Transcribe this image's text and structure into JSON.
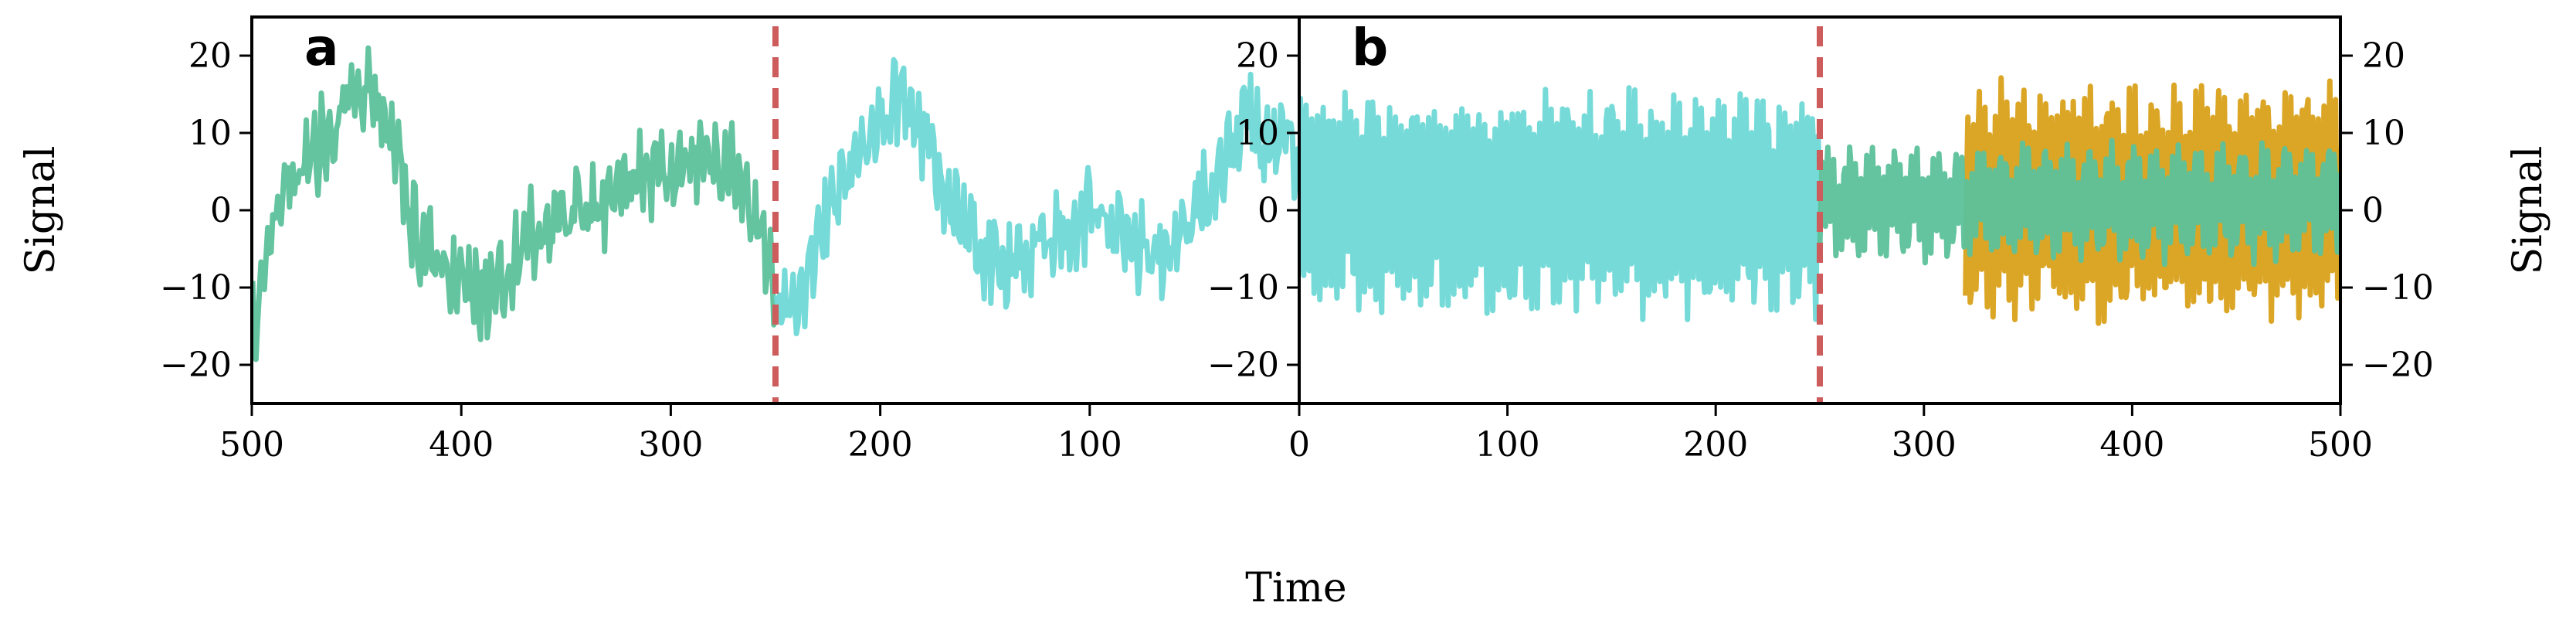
{
  "chart_data": {
    "type": "line",
    "xlabel": "Time",
    "ylabel": "Signal",
    "colors": {
      "green": "#5cc19a",
      "cyan": "#6fd9d6",
      "orange": "#d9a11a",
      "marker": "#cd5c5c"
    },
    "ylim": [
      -25,
      25
    ],
    "yticks": [
      -20,
      -10,
      0,
      10,
      20
    ],
    "panels": [
      {
        "label": "a",
        "xlim": [
          500,
          0
        ],
        "xticks": [
          500,
          400,
          300,
          200,
          100,
          0
        ],
        "vline_x": 250,
        "series": [
          {
            "color": "green",
            "x_range": [
              500,
              250
            ],
            "style": "walk",
            "values_at": [
              [
                500,
                -15
              ],
              [
                485,
                2
              ],
              [
                470,
                8
              ],
              [
                450,
                15
              ],
              [
                440,
                14
              ],
              [
                430,
                5
              ],
              [
                420,
                -5
              ],
              [
                400,
                -9
              ],
              [
                390,
                -12
              ],
              [
                380,
                -8
              ],
              [
                365,
                -3
              ],
              [
                350,
                -1
              ],
              [
                330,
                1
              ],
              [
                310,
                5
              ],
              [
                290,
                7
              ],
              [
                270,
                5
              ],
              [
                260,
                -1
              ],
              [
                250,
                -12
              ]
            ]
          },
          {
            "color": "cyan",
            "x_range": [
              250,
              0
            ],
            "style": "walk",
            "values_at": [
              [
                250,
                -12
              ],
              [
                240,
                -14
              ],
              [
                230,
                -5
              ],
              [
                215,
                5
              ],
              [
                200,
                12
              ],
              [
                190,
                14
              ],
              [
                180,
                10
              ],
              [
                165,
                0
              ],
              [
                150,
                -5
              ],
              [
                135,
                -7
              ],
              [
                120,
                -4
              ],
              [
                100,
                -1
              ],
              [
                85,
                -3
              ],
              [
                70,
                -6
              ],
              [
                55,
                -2
              ],
              [
                40,
                5
              ],
              [
                25,
                12
              ],
              [
                15,
                8
              ],
              [
                0,
                7
              ]
            ]
          }
        ]
      },
      {
        "label": "b",
        "xlim": [
          0,
          500
        ],
        "xticks": [
          0,
          100,
          200,
          300,
          400,
          500
        ],
        "vline_x": 250,
        "series": [
          {
            "color": "cyan",
            "x_range": [
              0,
              250
            ],
            "style": "oscillation",
            "amplitude": 13,
            "mean": 1
          },
          {
            "color": "orange",
            "x_range": [
              320,
              500
            ],
            "style": "oscillation",
            "amplitude": 14,
            "mean": 1
          },
          {
            "color": "green",
            "x_range": [
              250,
              500
            ],
            "style": "oscillation",
            "amplitude": 6,
            "mean": 1
          }
        ]
      }
    ]
  }
}
